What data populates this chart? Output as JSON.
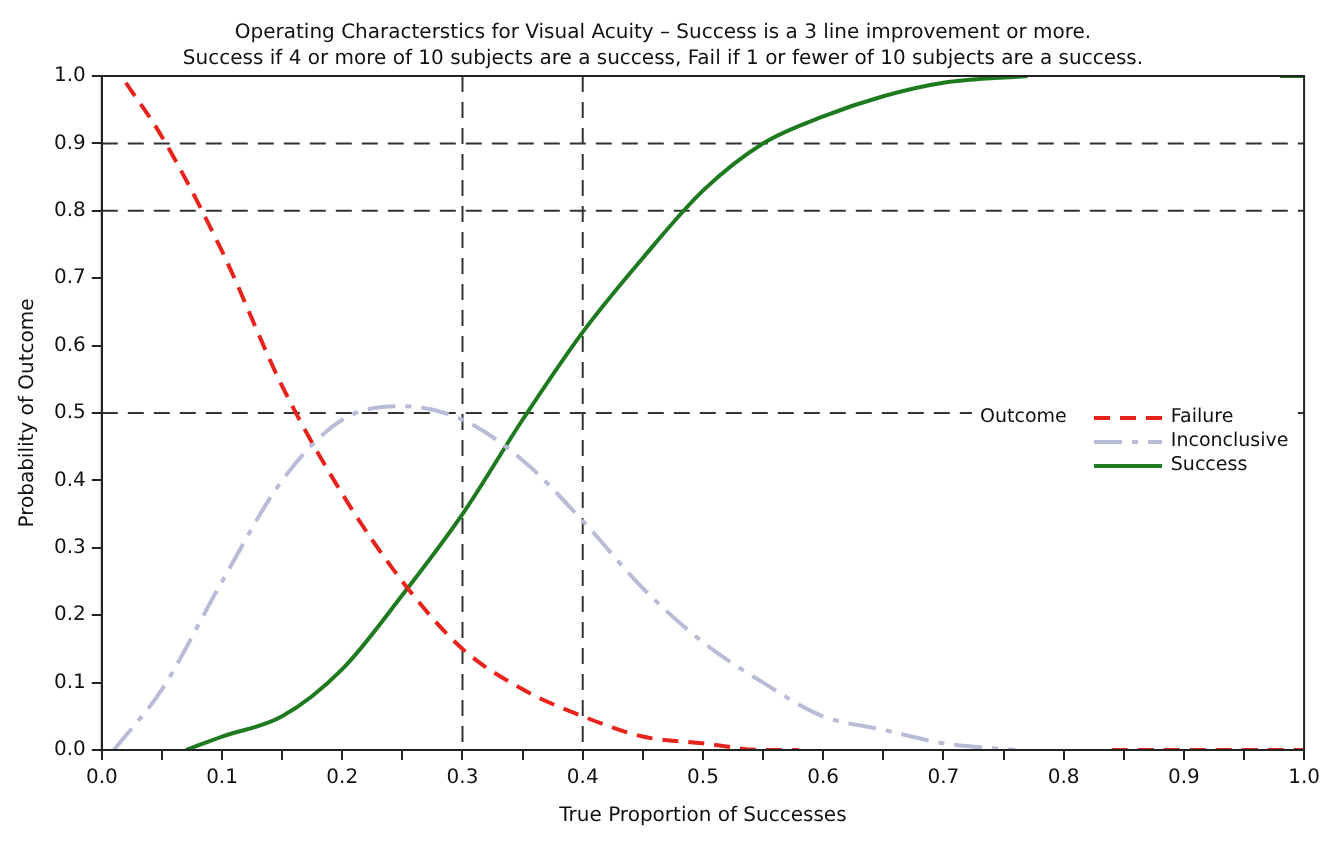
{
  "chart_data": {
    "type": "line",
    "title": "Operating Characterstics for Visual Acuity – Success is a 3 line improvement or more.",
    "subtitle": "Success if 4 or more  of 10 subjects are a success, Fail if 1 or fewer of 10 subjects are a success.",
    "xlabel": "True Proportion of Successes",
    "ylabel": "Probability of Outcome",
    "legend_title": "Outcome",
    "xlim": [
      0,
      1
    ],
    "ylim": [
      0,
      1
    ],
    "xticks": [
      {
        "value": 0,
        "label": "0.0"
      },
      {
        "value": 0.05,
        "label": null
      },
      0.1,
      {
        "value": 0.15,
        "label": null
      },
      0.2,
      {
        "value": 0.25,
        "label": null
      },
      0.3,
      {
        "value": 0.35,
        "label": null
      },
      0.4,
      {
        "value": 0.45,
        "label": null
      },
      0.5,
      {
        "value": 0.55,
        "label": null
      },
      0.6,
      {
        "value": 0.65,
        "label": null
      },
      0.7,
      {
        "value": 0.75,
        "label": null
      },
      0.8,
      {
        "value": 0.85,
        "label": null
      },
      0.9,
      {
        "value": 0.95,
        "label": null
      },
      {
        "value": 1,
        "label": "1.0"
      }
    ],
    "yticks": [
      {
        "value": 0,
        "label": "0.0"
      },
      0.1,
      0.2,
      0.3,
      0.4,
      0.5,
      0.6,
      0.7,
      0.8,
      0.9,
      {
        "value": 1,
        "label": "1.0"
      }
    ],
    "grid": false,
    "legend": "right",
    "marker": "none",
    "ref_lines": [
      {
        "axis": "y",
        "value": 0.5,
        "color": "#333333",
        "line_style": "dashed"
      },
      {
        "axis": "y",
        "value": 0.8,
        "color": "#333333",
        "line_style": "dashed"
      },
      {
        "axis": "y",
        "value": 0.9,
        "color": "#333333",
        "line_style": "dashed"
      },
      {
        "axis": "x",
        "value": 0.3,
        "color": "#333333",
        "line_style": "dashed"
      },
      {
        "axis": "x",
        "value": 0.4,
        "color": "#333333",
        "line_style": "dashed"
      }
    ],
    "series": [
      {
        "name": "Failure",
        "color": "#e8231c",
        "line_style": "dashed",
        "x": [
          0.02,
          0.05,
          0.1,
          0.15,
          0.2,
          0.25,
          0.3,
          0.35,
          0.4,
          0.45,
          0.5,
          0.55,
          0.58,
          0.7,
          0.84,
          0.9,
          1.0
        ],
        "values": [
          0.99,
          0.91,
          0.74,
          0.54,
          0.38,
          0.25,
          0.15,
          0.09,
          0.05,
          0.02,
          0.01,
          0.0,
          0.0,
          null,
          0.0,
          0.0,
          0.0
        ]
      },
      {
        "name": "Inconclusive",
        "color": "#b8bcd6",
        "line_style": "dashdot",
        "x": [
          0.01,
          0.05,
          0.1,
          0.15,
          0.2,
          0.25,
          0.3,
          0.35,
          0.4,
          0.45,
          0.5,
          0.55,
          0.6,
          0.65,
          0.7,
          0.76
        ],
        "values": [
          0.0,
          0.09,
          0.25,
          0.4,
          0.49,
          0.51,
          0.49,
          0.43,
          0.34,
          0.24,
          0.16,
          0.1,
          0.05,
          0.03,
          0.01,
          0.0
        ]
      },
      {
        "name": "Success",
        "color": "#1e7a1e",
        "line_style": "solid",
        "x": [
          0.07,
          0.1,
          0.15,
          0.2,
          0.25,
          0.3,
          0.35,
          0.4,
          0.45,
          0.5,
          0.55,
          0.6,
          0.65,
          0.7,
          0.77,
          0.88,
          0.98,
          1.0
        ],
        "values": [
          0.0,
          0.02,
          0.05,
          0.12,
          0.23,
          0.35,
          0.49,
          0.62,
          0.73,
          0.83,
          0.9,
          0.94,
          0.97,
          0.99,
          1.0,
          null,
          1.0,
          1.0
        ]
      }
    ]
  }
}
